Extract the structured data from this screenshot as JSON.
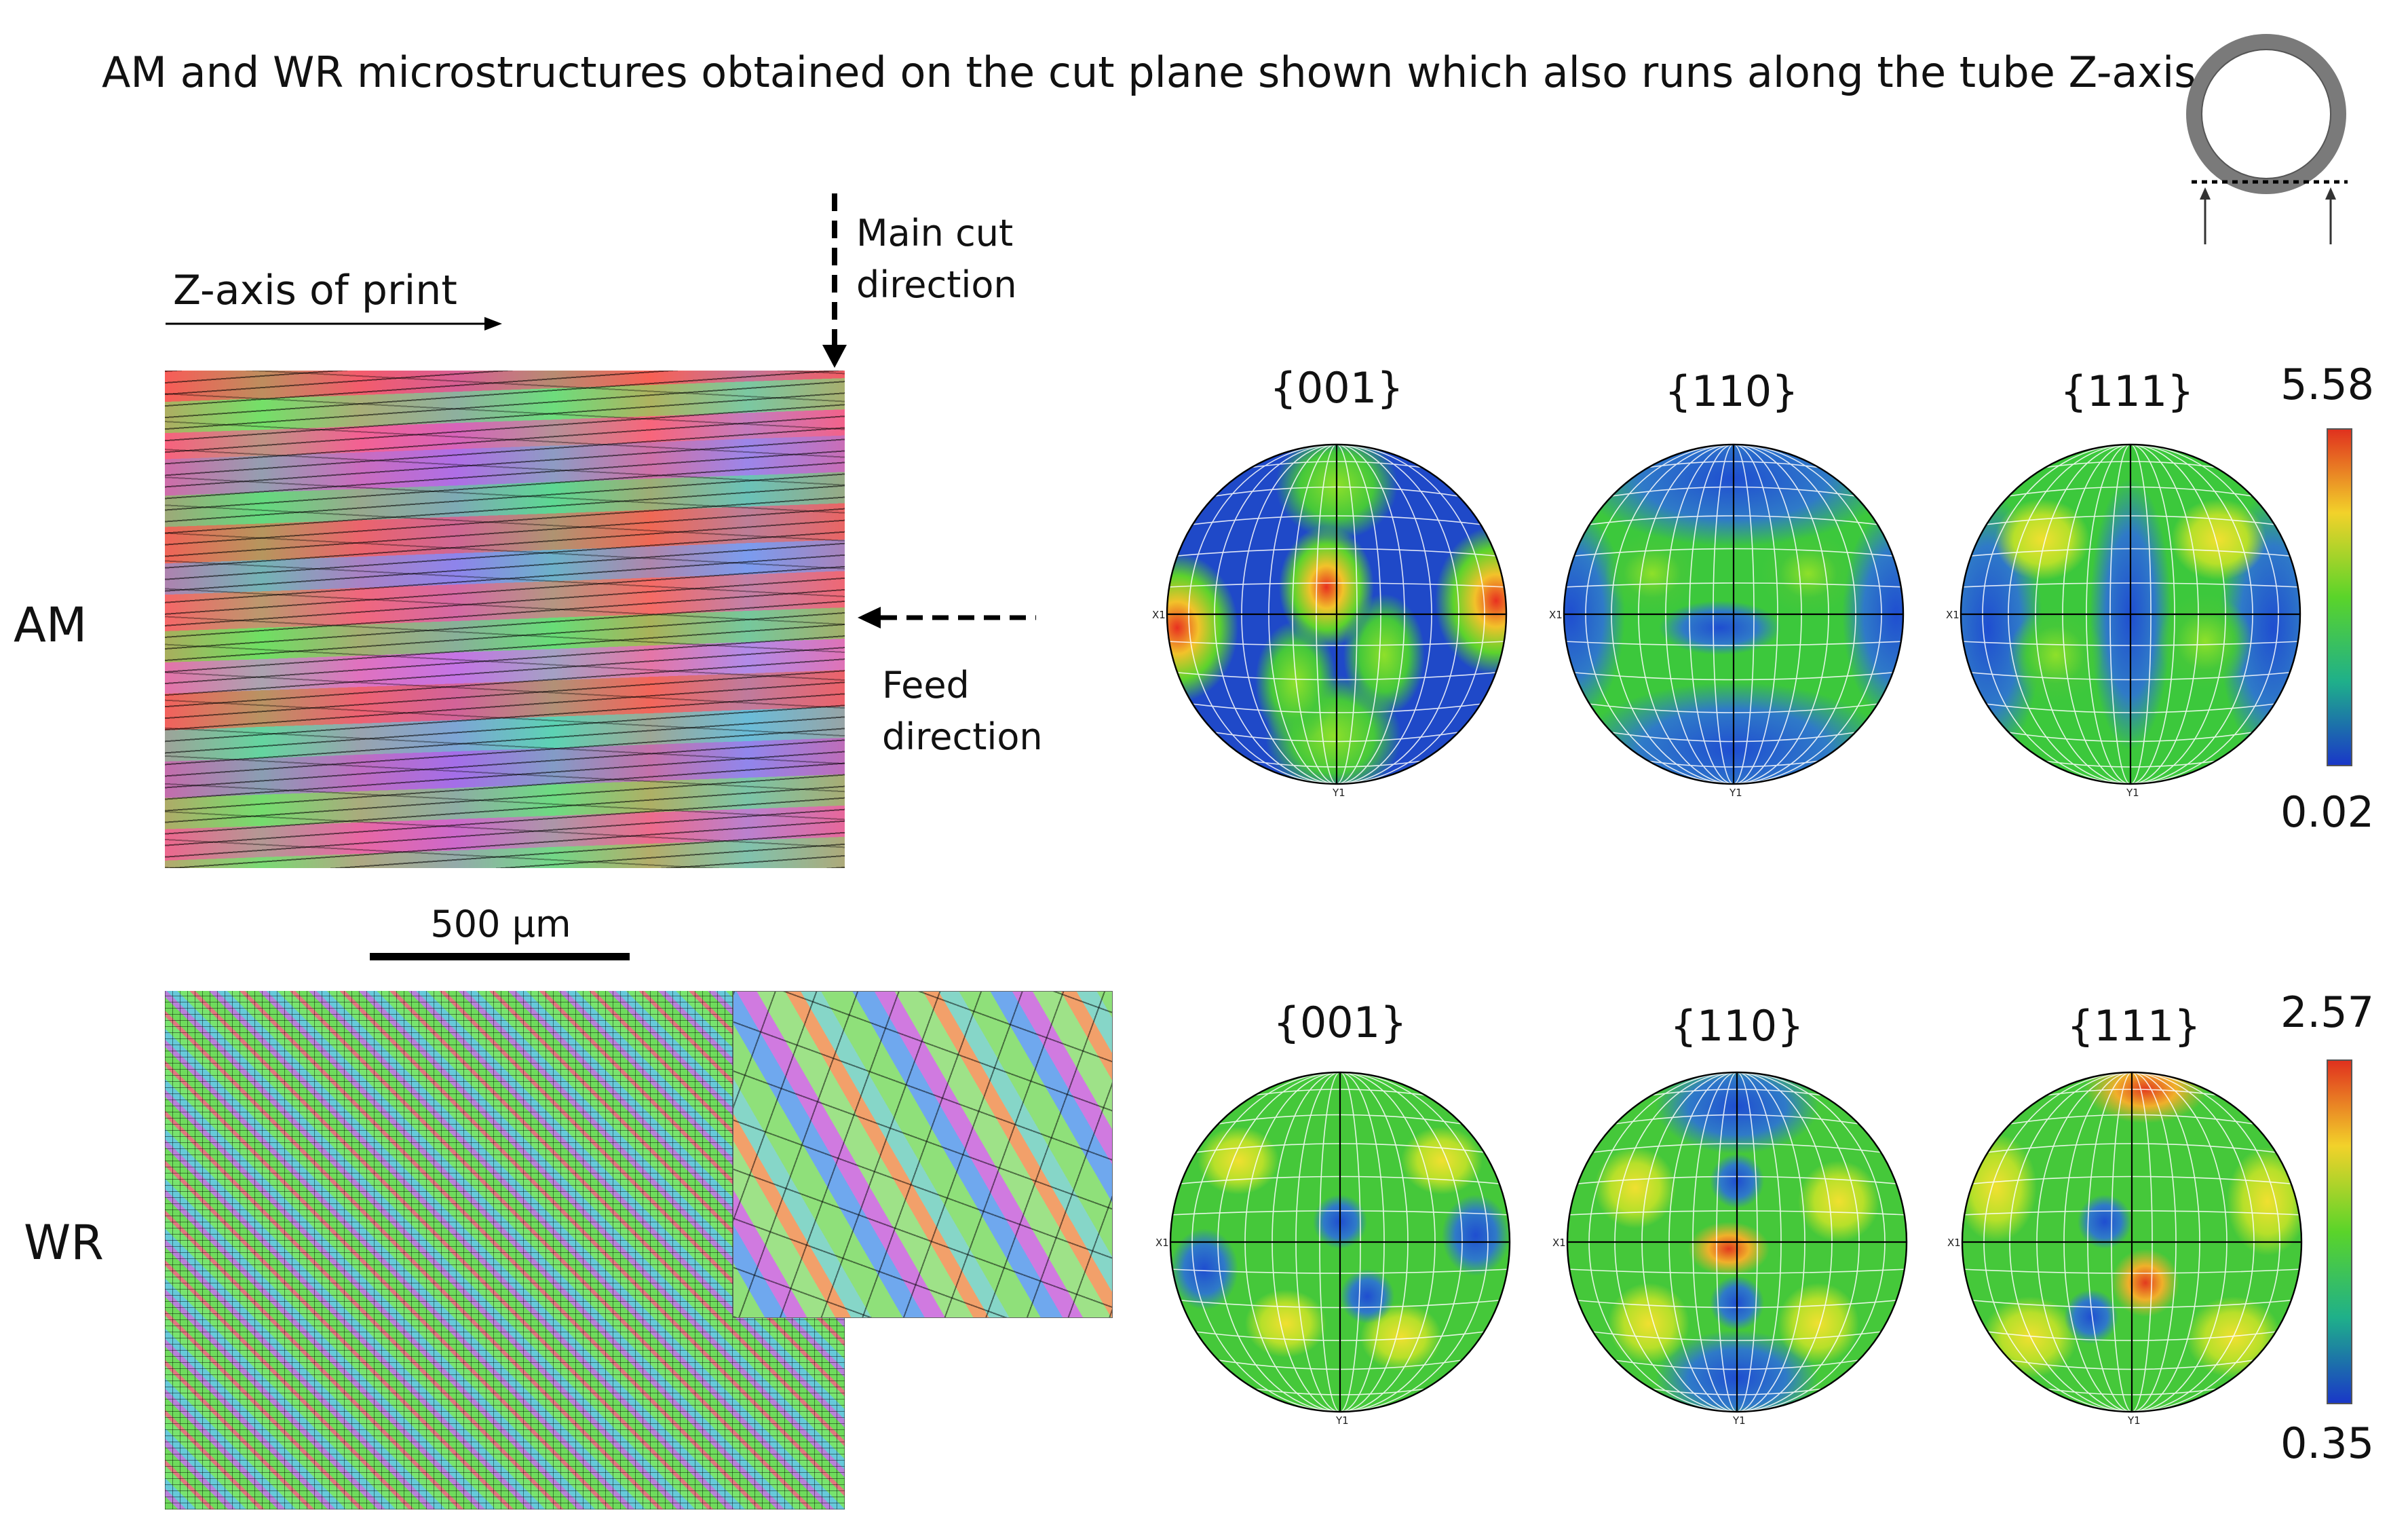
{
  "title": "AM and WR microstructures obtained on the cut plane shown which also runs along the tube Z-axis",
  "annotations": {
    "z_axis": "Z-axis of print",
    "main_cut_line1": "Main cut",
    "main_cut_line2": "direction",
    "feed_line1": "Feed",
    "feed_line2": "direction",
    "scale_bar": "500 µm"
  },
  "rows": {
    "am": {
      "label": "AM",
      "pole_figures": [
        "{001}",
        "{110}",
        "{111}"
      ],
      "colorbar_max": "5.58",
      "colorbar_min": "0.02"
    },
    "wr": {
      "label": "WR",
      "pole_figures": [
        "{001}",
        "{110}",
        "{111}"
      ],
      "colorbar_max": "2.57",
      "colorbar_min": "0.35"
    }
  },
  "pole_axes": {
    "x": "X1",
    "y": "Y1"
  },
  "colors": {
    "colorbar_top": "#e0301e",
    "colorbar_mid": "#5ad42a",
    "colorbar_bottom": "#1a37c8",
    "pf_blue": "#1f49c8",
    "pf_green": "#3ec83a"
  }
}
